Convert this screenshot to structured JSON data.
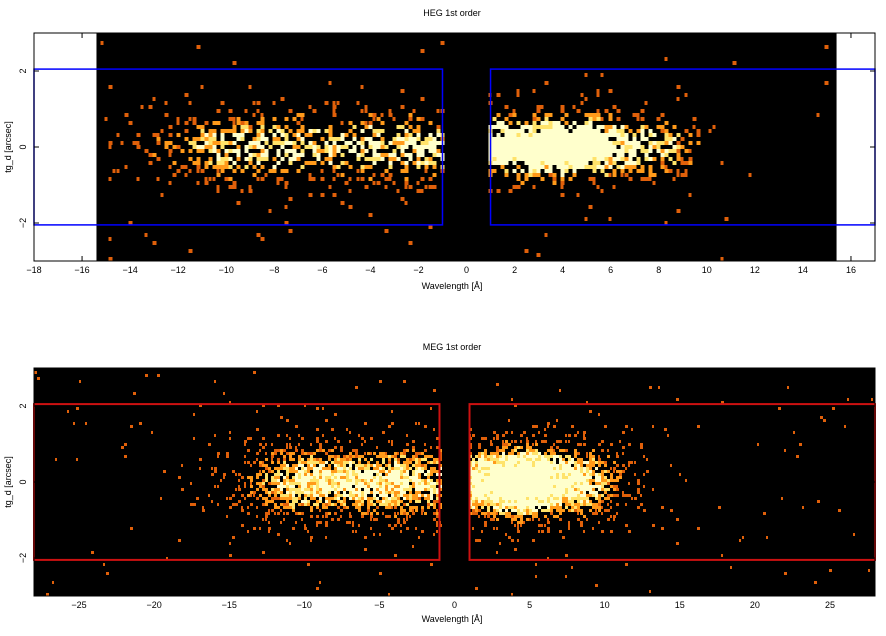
{
  "colors": {
    "background": "#000000",
    "heg_region": "#0000ff",
    "meg_region": "#cc1111",
    "heat_low": "#e0600a",
    "heat_mid": "#ff9a1a",
    "heat_high": "#ffe36a",
    "heat_peak": "#ffffcc"
  },
  "chart_data": [
    {
      "type": "heatmap",
      "title": "HEG 1st order",
      "xlabel": "Wavelength [Å]",
      "ylabel": "tg_d [arcsec]",
      "xlim": [
        -18,
        17
      ],
      "ylim": [
        -3,
        3
      ],
      "xticks": [
        -18,
        -16,
        -14,
        -12,
        -10,
        -8,
        -6,
        -4,
        -2,
        0,
        2,
        4,
        6,
        8,
        10,
        12,
        14,
        16
      ],
      "yticks": [
        -2,
        0,
        2
      ],
      "data_coverage_x": [
        -15.4,
        15.4
      ],
      "extraction_regions": [
        {
          "x": [
            -18,
            -1
          ],
          "y": [
            -2.05,
            2.05
          ]
        },
        {
          "x": [
            1,
            17
          ],
          "y": [
            -2.05,
            2.05
          ]
        }
      ],
      "clusters": [
        {
          "x_center": -5,
          "x_halfwidth": 4,
          "x_sigma": 2.6,
          "y_sigma": 0.55,
          "peak_counts": 1.0
        },
        {
          "x_center": 3,
          "x_halfwidth": 1.5,
          "x_sigma": 1.2,
          "y_sigma": 0.5,
          "peak_counts": 1.0
        },
        {
          "x_center": 6,
          "x_halfwidth": 1.5,
          "x_sigma": 1.5,
          "y_sigma": 0.5,
          "peak_counts": 1.0
        }
      ]
    },
    {
      "type": "heatmap",
      "title": "MEG 1st order",
      "xlabel": "Wavelength [Å]",
      "ylabel": "tg_d [arcsec]",
      "xlim": [
        -28,
        28
      ],
      "ylim": [
        -3,
        3
      ],
      "xticks": [
        -25,
        -20,
        -15,
        -10,
        -5,
        0,
        5,
        10,
        15,
        20,
        25
      ],
      "yticks": [
        -2,
        0,
        2
      ],
      "extraction_regions": [
        {
          "x": [
            -28,
            -1
          ],
          "y": [
            -2.05,
            2.05
          ]
        },
        {
          "x": [
            1,
            28
          ],
          "y": [
            -2.05,
            2.05
          ]
        }
      ],
      "clusters": [
        {
          "x_center": -7,
          "x_halfwidth": 2.5,
          "x_sigma": 3.0,
          "y_sigma": 0.6,
          "peak_counts": 1.0
        },
        {
          "x_center": 3,
          "x_halfwidth": 1.2,
          "x_sigma": 2.0,
          "y_sigma": 0.55,
          "peak_counts": 1.0
        },
        {
          "x_center": 6.5,
          "x_halfwidth": 1.5,
          "x_sigma": 2.2,
          "y_sigma": 0.6,
          "peak_counts": 1.0
        }
      ]
    }
  ]
}
